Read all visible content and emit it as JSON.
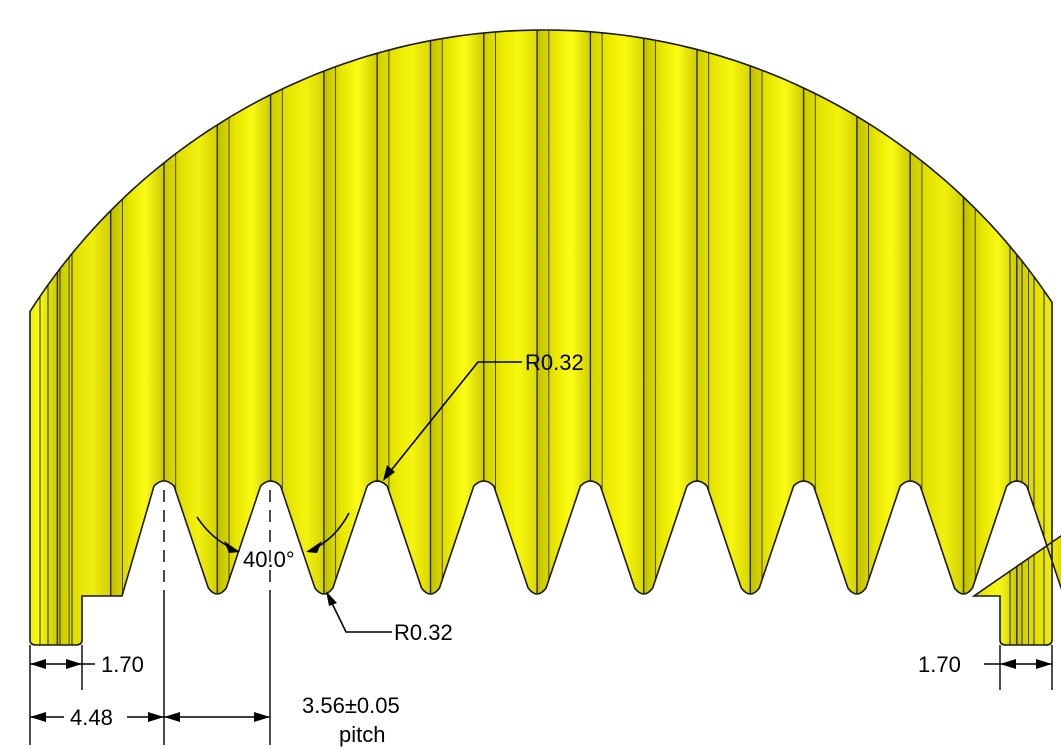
{
  "part": {
    "color": "#F2F000",
    "dark_color": "#C9C800",
    "edge_color": "#1A1A1A",
    "tooth_count": 10
  },
  "annotations": {
    "radius_top": "R0.32",
    "radius_bottom": "R0.32",
    "angle": "40.0°",
    "left_margin": "1.70",
    "right_margin": "1.70",
    "first_tooth_offset": "4.48",
    "pitch_value": "3.56±0.05",
    "pitch_label": "pitch"
  }
}
